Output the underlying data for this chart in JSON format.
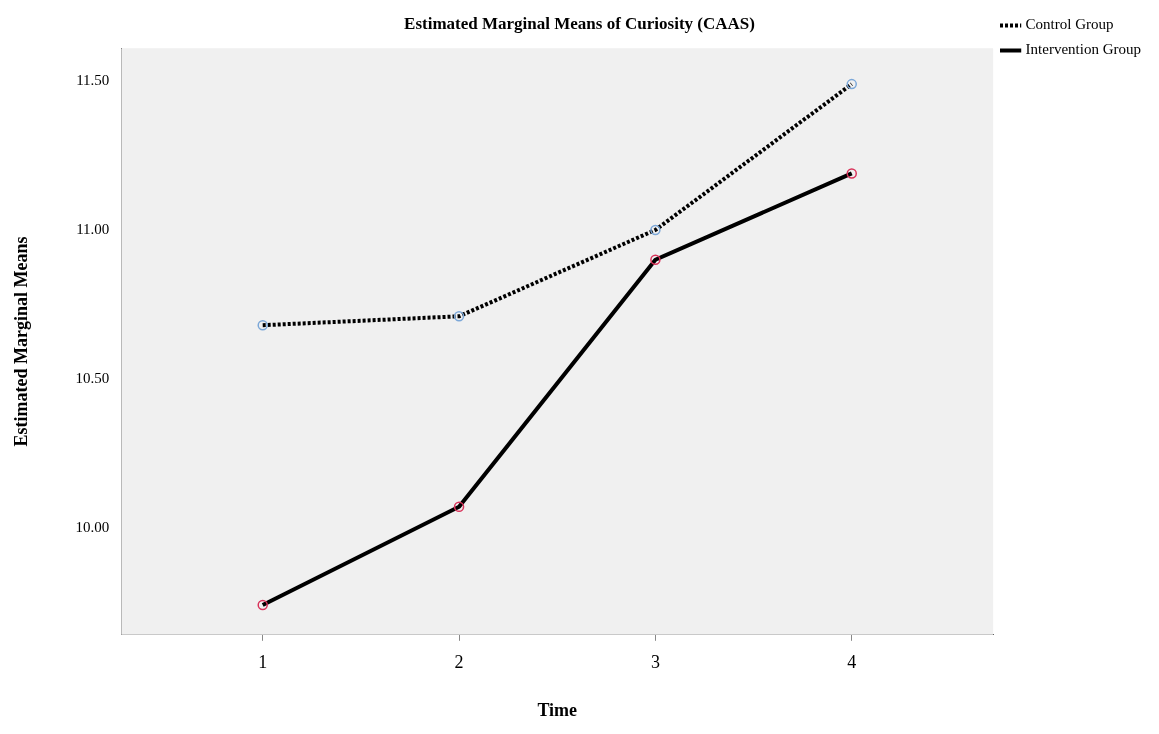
{
  "chart_data": {
    "type": "line",
    "title": "Estimated Marginal Means of Curiosity (CAAS)",
    "xlabel": "Time",
    "ylabel": "Estimated Marginal Means",
    "x": [
      1,
      2,
      3,
      4
    ],
    "xlim": [
      0.28,
      4.72
    ],
    "xticks": [
      1,
      2,
      3,
      4
    ],
    "ylim": [
      9.64,
      11.61
    ],
    "yticks": [
      {
        "value": 10,
        "label": "10.00"
      },
      {
        "value": 10.5,
        "label": "10.50"
      },
      {
        "value": 11,
        "label": "11.00"
      },
      {
        "value": 11.5,
        "label": "11.50"
      }
    ],
    "series": [
      {
        "name": "Control Group",
        "color": "#000000",
        "colors": [
          "#7ba7d8",
          "#7ba7d8",
          "#7ba7d8",
          "#7ba7d8"
        ],
        "line_style": "dotted",
        "values": [
          10.68,
          10.71,
          11.0,
          11.49
        ]
      },
      {
        "name": "Intervention Group",
        "color": "#000000",
        "colors": [
          "#d9335a",
          "#d9335a",
          "#d9335a",
          "#d9335a"
        ],
        "line_style": "solid",
        "values": [
          9.74,
          10.07,
          10.9,
          11.19
        ]
      }
    ],
    "marker": "circle",
    "grid": false,
    "legend": "top right"
  }
}
